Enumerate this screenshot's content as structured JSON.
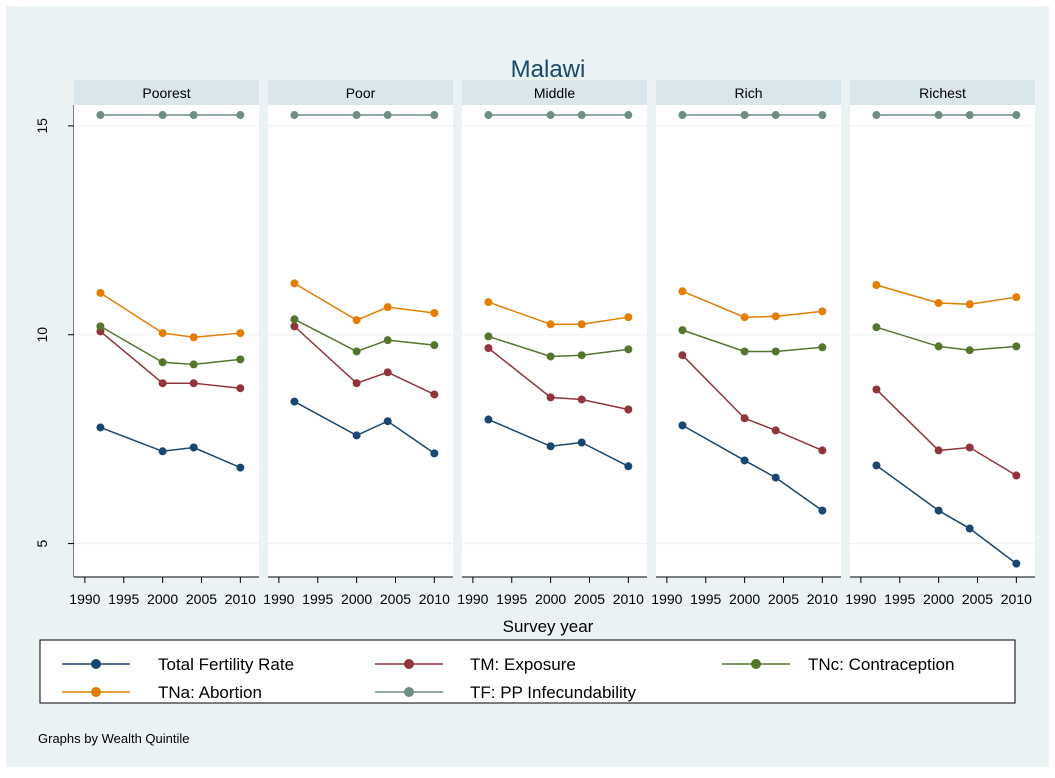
{
  "chart_data": {
    "type": "line",
    "title": "Malawi",
    "x_label": "Survey year",
    "note": "Graphs by Wealth Quintile",
    "panels": [
      "Poorest",
      "Poor",
      "Middle",
      "Rich",
      "Richest"
    ],
    "x": [
      1992,
      2000,
      2004,
      2010
    ],
    "xlim": [
      1988.6,
      2012.4
    ],
    "xticks": [
      1990,
      1995,
      2000,
      2005,
      2010
    ],
    "ylim": [
      4.2,
      15.5
    ],
    "yticks": [
      5,
      10,
      15
    ],
    "grid": true,
    "series": [
      {
        "name": "Total Fertility Rate",
        "color": "#1a476f",
        "values": [
          [
            7.78,
            7.21,
            7.3,
            6.82
          ],
          [
            8.4,
            7.59,
            7.93,
            7.16
          ],
          [
            7.97,
            7.33,
            7.42,
            6.85
          ],
          [
            7.83,
            6.99,
            6.58,
            5.79
          ],
          [
            6.87,
            5.79,
            5.36,
            4.52
          ]
        ]
      },
      {
        "name": "TM: Exposure",
        "color": "#90353b",
        "values": [
          [
            10.08,
            8.84,
            8.84,
            8.72
          ],
          [
            10.2,
            8.84,
            9.1,
            8.57
          ],
          [
            9.68,
            8.5,
            8.45,
            8.21
          ],
          [
            9.51,
            8.0,
            7.71,
            7.23
          ],
          [
            8.69,
            7.23,
            7.3,
            6.63
          ]
        ]
      },
      {
        "name": "TNc: Contraception",
        "color": "#55752f",
        "values": [
          [
            10.2,
            9.34,
            9.29,
            9.41
          ],
          [
            10.37,
            9.6,
            9.87,
            9.75
          ],
          [
            9.96,
            9.48,
            9.51,
            9.65
          ],
          [
            10.11,
            9.6,
            9.6,
            9.7
          ],
          [
            10.18,
            9.72,
            9.63,
            9.72
          ]
        ]
      },
      {
        "name": "TNa: Abortion",
        "color": "#e37e00",
        "values": [
          [
            11.0,
            10.04,
            9.94,
            10.04
          ],
          [
            11.23,
            10.35,
            10.66,
            10.52
          ],
          [
            10.78,
            10.25,
            10.25,
            10.42
          ],
          [
            11.04,
            10.42,
            10.44,
            10.56
          ],
          [
            11.19,
            10.76,
            10.73,
            10.9
          ]
        ]
      },
      {
        "name": "TF: PP Infecundability",
        "color": "#6e8e84",
        "values": [
          [
            15.26,
            15.26,
            15.26,
            15.26
          ],
          [
            15.26,
            15.26,
            15.26,
            15.26
          ],
          [
            15.26,
            15.26,
            15.26,
            15.26
          ],
          [
            15.26,
            15.26,
            15.26,
            15.26
          ],
          [
            15.26,
            15.26,
            15.26,
            15.26
          ]
        ]
      }
    ]
  }
}
